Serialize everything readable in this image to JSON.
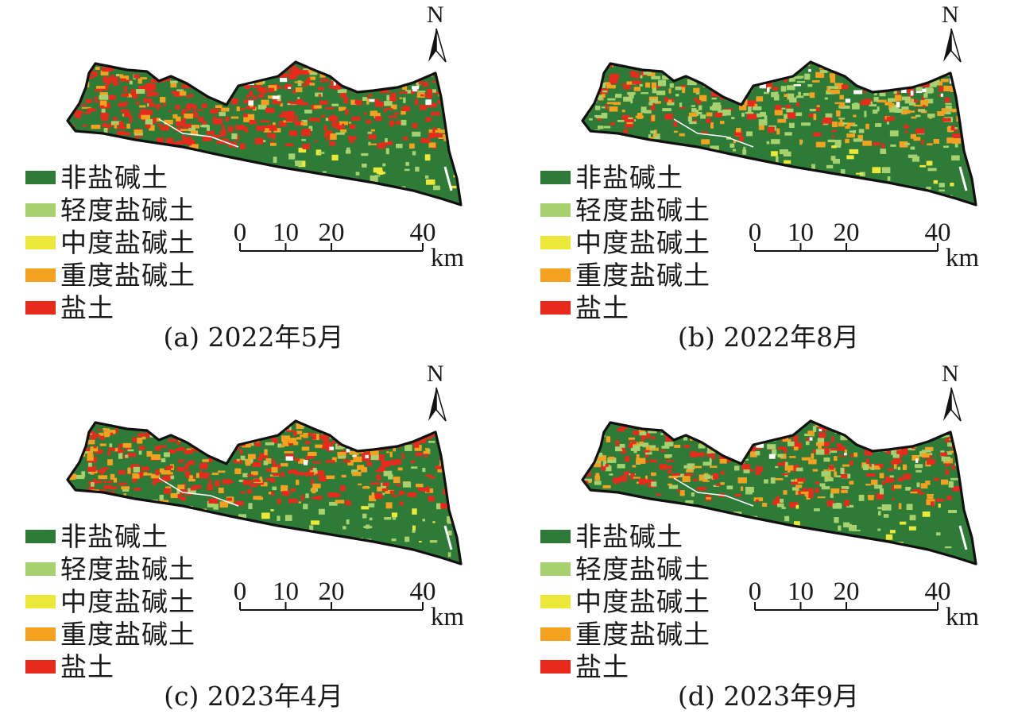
{
  "legend": {
    "items": [
      {
        "label": "非盐碱土",
        "color": "#2e7a37"
      },
      {
        "label": "轻度盐碱土",
        "color": "#a7d16e"
      },
      {
        "label": "中度盐碱土",
        "color": "#ece83a"
      },
      {
        "label": "重度盐碱土",
        "color": "#f3a11e"
      },
      {
        "label": "盐土",
        "color": "#e82a1d"
      }
    ]
  },
  "scale_bar": {
    "ticks": [
      "0",
      "10",
      "20",
      "40"
    ],
    "unit": "km"
  },
  "north_arrow": {
    "label": "N",
    "icon": "north-arrow-icon"
  },
  "panels": [
    {
      "caption": "(a) 2022年5月"
    },
    {
      "caption": "(b) 2022年8月"
    },
    {
      "caption": "(c) 2023年4月"
    },
    {
      "caption": "(d) 2023年9月"
    }
  ]
}
